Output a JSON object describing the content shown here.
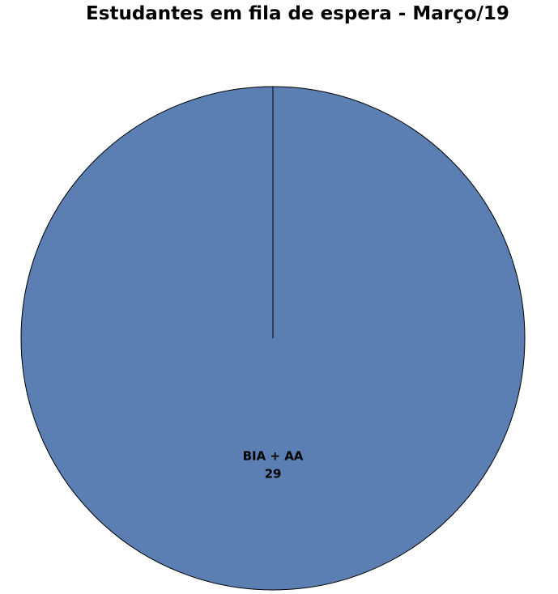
{
  "chart_data": {
    "type": "pie",
    "title": "Estudantes em fila de espera - Março/19",
    "slices": [
      {
        "label": "BIA + AA",
        "value": 29,
        "color": "#5b7fb3"
      }
    ],
    "legend": "none",
    "data_labels": "category and value"
  }
}
